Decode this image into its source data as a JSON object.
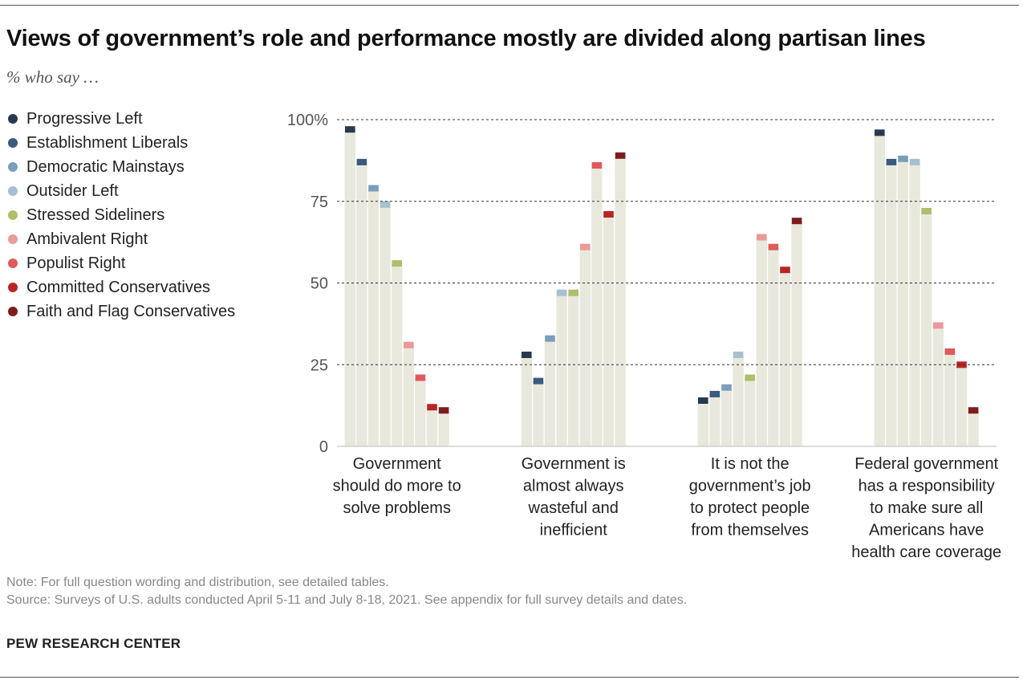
{
  "title": "Views of government’s role and performance mostly are divided along partisan lines",
  "subtitle": "% who say …",
  "note": "Note: For full question wording and distribution, see detailed tables.",
  "source": "Source: Surveys of U.S. adults conducted April 5-11 and July 8-18, 2021. See appendix for full survey details and dates.",
  "brand": "PEW RESEARCH CENTER",
  "chart_data": {
    "type": "bar",
    "ylim": [
      0,
      100
    ],
    "yticks": [
      0,
      25,
      50,
      75,
      100
    ],
    "ytick_labels": [
      "0",
      "25",
      "50",
      "75",
      "100%"
    ],
    "grid": true,
    "legend_position": "left",
    "categories": [
      [
        "Government",
        "should do more to",
        "solve problems"
      ],
      [
        "Government is",
        "almost always",
        "wasteful and",
        "inefficient"
      ],
      [
        "It is not the",
        "government’s job",
        "to protect people",
        "from themselves"
      ],
      [
        "Federal government",
        "has a responsibility",
        "to make sure all",
        "Americans have",
        "health care coverage"
      ]
    ],
    "series": [
      {
        "name": "Progressive Left",
        "color": "#26394f",
        "values": [
          97,
          28,
          14,
          96
        ]
      },
      {
        "name": "Establishment Liberals",
        "color": "#3a5a7e",
        "values": [
          87,
          20,
          16,
          87
        ]
      },
      {
        "name": "Democratic Mainstays",
        "color": "#7a9ebc",
        "values": [
          79,
          33,
          18,
          88
        ]
      },
      {
        "name": "Outsider Left",
        "color": "#a6bfd1",
        "values": [
          74,
          47,
          28,
          87
        ]
      },
      {
        "name": "Stressed Sideliners",
        "color": "#adbf6a",
        "values": [
          56,
          47,
          21,
          72
        ]
      },
      {
        "name": "Ambivalent Right",
        "color": "#ea9a98",
        "values": [
          31,
          61,
          64,
          37
        ]
      },
      {
        "name": "Populist Right",
        "color": "#df5a5a",
        "values": [
          21,
          86,
          61,
          29
        ]
      },
      {
        "name": "Committed Conservatives",
        "color": "#bb2424",
        "values": [
          12,
          71,
          54,
          25
        ]
      },
      {
        "name": "Faith and Flag Conservatives",
        "color": "#7c1d1d",
        "values": [
          11,
          89,
          69,
          11
        ]
      }
    ],
    "bar_fill_color": "#e8e8dc",
    "gridline_color": "#333333"
  }
}
